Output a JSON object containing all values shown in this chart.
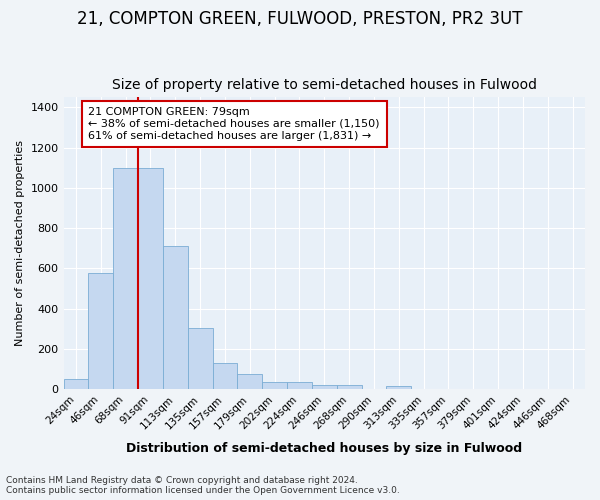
{
  "title": "21, COMPTON GREEN, FULWOOD, PRESTON, PR2 3UT",
  "subtitle": "Size of property relative to semi-detached houses in Fulwood",
  "xlabel": "Distribution of semi-detached houses by size in Fulwood",
  "ylabel": "Number of semi-detached properties",
  "footer_line1": "Contains HM Land Registry data © Crown copyright and database right 2024.",
  "footer_line2": "Contains public sector information licensed under the Open Government Licence v3.0.",
  "categories": [
    "24sqm",
    "46sqm",
    "68sqm",
    "91sqm",
    "113sqm",
    "135sqm",
    "157sqm",
    "179sqm",
    "202sqm",
    "224sqm",
    "246sqm",
    "268sqm",
    "290sqm",
    "313sqm",
    "335sqm",
    "357sqm",
    "379sqm",
    "401sqm",
    "424sqm",
    "446sqm",
    "468sqm"
  ],
  "values": [
    50,
    575,
    1100,
    1100,
    710,
    305,
    130,
    75,
    35,
    35,
    20,
    20,
    0,
    15,
    0,
    0,
    0,
    0,
    0,
    0,
    0
  ],
  "bar_color": "#c5d8f0",
  "bar_edge_color": "#7aadd4",
  "red_line_x": 3.0,
  "red_line_color": "#cc0000",
  "annotation_text": "21 COMPTON GREEN: 79sqm\n← 38% of semi-detached houses are smaller (1,150)\n61% of semi-detached houses are larger (1,831) →",
  "annotation_box_color": "white",
  "annotation_box_edge_color": "#cc0000",
  "ylim": [
    0,
    1450
  ],
  "yticks": [
    0,
    200,
    400,
    600,
    800,
    1000,
    1200,
    1400
  ],
  "background_color": "#f0f4f8",
  "plot_bg_color": "#e8f0f8",
  "title_fontsize": 12,
  "subtitle_fontsize": 10,
  "grid_color": "#ffffff"
}
